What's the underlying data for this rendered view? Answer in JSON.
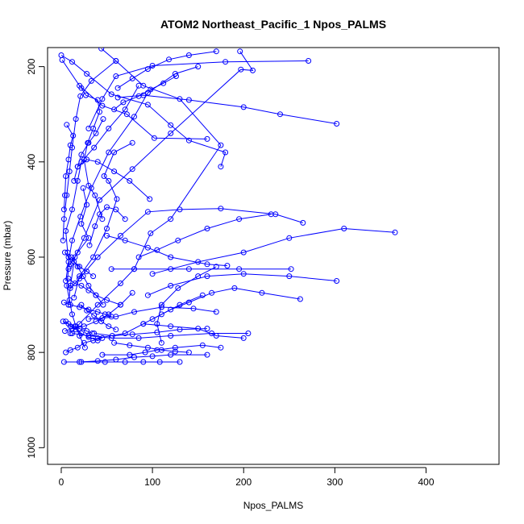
{
  "chart_data": {
    "type": "line",
    "title": "ATOM2 Northeast_Pacific_1 Npos_PALMS",
    "xlabel": "Npos_PALMS",
    "ylabel": "Pressure (mbar)",
    "xlim": [
      -15,
      480
    ],
    "ylim": [
      1035,
      160
    ],
    "x_ticks": [
      0,
      100,
      200,
      300,
      400
    ],
    "y_ticks": [
      200,
      400,
      600,
      800,
      1000
    ],
    "y_reversed": true,
    "grid": false,
    "legend": "none",
    "series_color": "#0000ff",
    "marker": "open-circle",
    "profiles": [
      [
        [
          0,
          176
        ],
        [
          12,
          190
        ],
        [
          28,
          215
        ],
        [
          55,
          258
        ],
        [
          95,
          280
        ],
        [
          120,
          323
        ],
        [
          140,
          355
        ],
        [
          180,
          380
        ],
        [
          175,
          410
        ]
      ],
      [
        [
          1,
          186
        ],
        [
          20,
          240
        ],
        [
          45,
          282
        ],
        [
          72,
          300
        ],
        [
          102,
          350
        ],
        [
          160,
          352
        ]
      ],
      [
        [
          44,
          162
        ],
        [
          60,
          188
        ],
        [
          33,
          230
        ],
        [
          21,
          262
        ],
        [
          16,
          310
        ],
        [
          12,
          370
        ],
        [
          9,
          420
        ],
        [
          6,
          470
        ],
        [
          3,
          520
        ],
        [
          2,
          565
        ]
      ],
      [
        [
          60,
          188
        ],
        [
          90,
          240
        ],
        [
          130,
          268
        ],
        [
          175,
          365
        ],
        [
          120,
          520
        ],
        [
          98,
          550
        ],
        [
          80,
          625
        ],
        [
          65,
          655
        ],
        [
          40,
          700
        ],
        [
          20,
          740
        ],
        [
          10,
          760
        ]
      ],
      [
        [
          85,
          240
        ],
        [
          70,
          290
        ],
        [
          52,
          330
        ],
        [
          36,
          370
        ],
        [
          22,
          400
        ],
        [
          18,
          440
        ],
        [
          12,
          500
        ],
        [
          5,
          545
        ],
        [
          7,
          590
        ],
        [
          9,
          620
        ]
      ],
      [
        [
          22,
          245
        ],
        [
          27,
          260
        ],
        [
          40,
          270
        ],
        [
          42,
          295
        ],
        [
          35,
          330
        ],
        [
          29,
          360
        ],
        [
          25,
          395
        ],
        [
          30,
          450
        ],
        [
          37,
          470
        ],
        [
          45,
          520
        ]
      ],
      [
        [
          196,
          168
        ],
        [
          210,
          208
        ],
        [
          197,
          206
        ],
        [
          120,
          340
        ],
        [
          78,
          415
        ],
        [
          42,
          480
        ],
        [
          25,
          560
        ],
        [
          15,
          600
        ],
        [
          10,
          660
        ],
        [
          8,
          700
        ]
      ],
      [
        [
          271,
          188
        ],
        [
          180,
          190
        ],
        [
          100,
          198
        ],
        [
          60,
          220
        ],
        [
          45,
          268
        ],
        [
          30,
          330
        ]
      ],
      [
        [
          150,
          200
        ],
        [
          125,
          215
        ],
        [
          95,
          255
        ],
        [
          80,
          305
        ],
        [
          52,
          380
        ],
        [
          33,
          455
        ],
        [
          21,
          515
        ],
        [
          12,
          565
        ],
        [
          8,
          610
        ],
        [
          5,
          650
        ]
      ],
      [
        [
          302,
          320
        ],
        [
          240,
          300
        ],
        [
          200,
          285
        ],
        [
          140,
          270
        ],
        [
          90,
          260
        ],
        [
          62,
          265
        ]
      ],
      [
        [
          265,
          528
        ],
        [
          235,
          510
        ],
        [
          175,
          498
        ],
        [
          130,
          500
        ],
        [
          95,
          505
        ],
        [
          65,
          555
        ],
        [
          40,
          600
        ],
        [
          20,
          645
        ],
        [
          10,
          665
        ]
      ],
      [
        [
          366,
          548
        ],
        [
          310,
          540
        ],
        [
          250,
          560
        ],
        [
          200,
          590
        ],
        [
          150,
          610
        ],
        [
          120,
          625
        ],
        [
          100,
          635
        ]
      ],
      [
        [
          302,
          650
        ],
        [
          250,
          640
        ],
        [
          200,
          635
        ],
        [
          160,
          640
        ],
        [
          120,
          660
        ],
        [
          95,
          680
        ]
      ],
      [
        [
          262,
          688
        ],
        [
          220,
          675
        ],
        [
          190,
          665
        ],
        [
          165,
          675
        ],
        [
          140,
          695
        ],
        [
          120,
          710
        ],
        [
          100,
          730
        ]
      ],
      [
        [
          252,
          625
        ],
        [
          195,
          625
        ],
        [
          140,
          625
        ],
        [
          80,
          625
        ],
        [
          55,
          625
        ]
      ],
      [
        [
          205,
          760
        ],
        [
          165,
          760
        ],
        [
          120,
          765
        ],
        [
          85,
          770
        ],
        [
          55,
          770
        ],
        [
          30,
          765
        ],
        [
          12,
          760
        ]
      ],
      [
        [
          200,
          770
        ],
        [
          170,
          765
        ],
        [
          150,
          750
        ],
        [
          120,
          745
        ],
        [
          90,
          740
        ]
      ],
      [
        [
          175,
          790
        ],
        [
          155,
          785
        ],
        [
          125,
          790
        ],
        [
          105,
          795
        ],
        [
          92,
          800
        ],
        [
          75,
          805
        ],
        [
          45,
          805
        ]
      ],
      [
        [
          160,
          805
        ],
        [
          120,
          805
        ],
        [
          100,
          808
        ],
        [
          80,
          810
        ],
        [
          60,
          815
        ],
        [
          40,
          818
        ],
        [
          20,
          820
        ]
      ],
      [
        [
          130,
          820
        ],
        [
          108,
          820
        ],
        [
          90,
          820
        ],
        [
          70,
          820
        ],
        [
          48,
          820
        ],
        [
          22,
          820
        ],
        [
          3,
          820
        ]
      ],
      [
        [
          170,
          715
        ],
        [
          145,
          708
        ],
        [
          110,
          705
        ],
        [
          80,
          715
        ],
        [
          60,
          725
        ],
        [
          45,
          728
        ],
        [
          30,
          730
        ]
      ],
      [
        [
          170,
          620
        ],
        [
          150,
          640
        ],
        [
          128,
          665
        ],
        [
          110,
          700
        ],
        [
          105,
          740
        ],
        [
          110,
          780
        ]
      ],
      [
        [
          182,
          618
        ],
        [
          160,
          615
        ],
        [
          120,
          600
        ],
        [
          95,
          580
        ],
        [
          70,
          565
        ],
        [
          50,
          555
        ]
      ],
      [
        [
          230,
          510
        ],
        [
          195,
          520
        ],
        [
          160,
          540
        ],
        [
          128,
          565
        ],
        [
          105,
          585
        ],
        [
          85,
          600
        ]
      ],
      [
        [
          155,
          680
        ],
        [
          130,
          700
        ],
        [
          110,
          720
        ],
        [
          90,
          740
        ],
        [
          70,
          760
        ],
        [
          40,
          770
        ]
      ],
      [
        [
          78,
          360
        ],
        [
          58,
          380
        ],
        [
          47,
          430
        ],
        [
          52,
          440
        ],
        [
          61,
          478
        ],
        [
          50,
          540
        ],
        [
          35,
          600
        ],
        [
          20,
          640
        ],
        [
          14,
          685
        ]
      ],
      [
        [
          97,
          478
        ],
        [
          75,
          440
        ],
        [
          58,
          420
        ],
        [
          40,
          400
        ],
        [
          28,
          395
        ],
        [
          18,
          410
        ]
      ],
      [
        [
          78,
          675
        ],
        [
          65,
          700
        ],
        [
          52,
          720
        ],
        [
          38,
          735
        ],
        [
          25,
          745
        ],
        [
          12,
          750
        ],
        [
          4,
          755
        ]
      ],
      [
        [
          55,
          725
        ],
        [
          48,
          720
        ],
        [
          40,
          715
        ],
        [
          30,
          710
        ],
        [
          20,
          705
        ],
        [
          10,
          700
        ],
        [
          3,
          695
        ]
      ],
      [
        [
          34,
          760
        ],
        [
          28,
          755
        ],
        [
          20,
          750
        ],
        [
          15,
          745
        ],
        [
          8,
          740
        ],
        [
          2,
          735
        ]
      ],
      [
        [
          45,
          770
        ],
        [
          35,
          775
        ],
        [
          25,
          780
        ],
        [
          18,
          790
        ],
        [
          10,
          795
        ],
        [
          5,
          800
        ]
      ],
      [
        [
          65,
          700
        ],
        [
          50,
          690
        ],
        [
          38,
          680
        ],
        [
          30,
          670
        ],
        [
          22,
          660
        ],
        [
          15,
          655
        ],
        [
          8,
          645
        ]
      ],
      [
        [
          35,
          640
        ],
        [
          28,
          630
        ],
        [
          20,
          620
        ],
        [
          14,
          610
        ],
        [
          8,
          600
        ],
        [
          4,
          590
        ]
      ],
      [
        [
          24,
          455
        ],
        [
          28,
          490
        ],
        [
          22,
          530
        ],
        [
          30,
          560
        ],
        [
          18,
          590
        ],
        [
          10,
          615
        ]
      ],
      [
        [
          46,
          310
        ],
        [
          38,
          340
        ],
        [
          30,
          360
        ],
        [
          22,
          385
        ],
        [
          18,
          410
        ],
        [
          14,
          440
        ]
      ],
      [
        [
          6,
          322
        ],
        [
          13,
          345
        ],
        [
          10,
          365
        ],
        [
          8,
          395
        ],
        [
          5,
          430
        ],
        [
          4,
          470
        ],
        [
          3,
          500
        ]
      ],
      [
        [
          11,
          600
        ],
        [
          18,
          620
        ],
        [
          24,
          640
        ],
        [
          30,
          660
        ],
        [
          38,
          680
        ],
        [
          46,
          700
        ]
      ],
      [
        [
          22,
          700
        ],
        [
          28,
          712
        ],
        [
          36,
          722
        ],
        [
          44,
          735
        ],
        [
          52,
          745
        ],
        [
          60,
          752
        ]
      ],
      [
        [
          5,
          735
        ],
        [
          10,
          745
        ],
        [
          16,
          752
        ],
        [
          22,
          760
        ],
        [
          30,
          768
        ],
        [
          40,
          775
        ]
      ],
      [
        [
          8,
          625
        ],
        [
          6,
          660
        ],
        [
          9,
          690
        ],
        [
          12,
          720
        ],
        [
          16,
          745
        ],
        [
          20,
          765
        ],
        [
          26,
          790
        ]
      ],
      [
        [
          31,
          575
        ],
        [
          37,
          535
        ],
        [
          42,
          510
        ],
        [
          50,
          495
        ],
        [
          60,
          500
        ],
        [
          70,
          520
        ]
      ],
      [
        [
          126,
          220
        ],
        [
          112,
          235
        ],
        [
          98,
          248
        ],
        [
          85,
          262
        ],
        [
          68,
          275
        ],
        [
          58,
          290
        ]
      ],
      [
        [
          170,
          168
        ],
        [
          140,
          176
        ],
        [
          118,
          185
        ],
        [
          95,
          205
        ],
        [
          78,
          225
        ],
        [
          62,
          245
        ]
      ],
      [
        [
          160,
          750
        ],
        [
          130,
          752
        ],
        [
          105,
          758
        ],
        [
          78,
          762
        ],
        [
          56,
          765
        ],
        [
          36,
          760
        ]
      ],
      [
        [
          140,
          800
        ],
        [
          125,
          798
        ],
        [
          110,
          795
        ],
        [
          95,
          790
        ],
        [
          75,
          785
        ],
        [
          58,
          780
        ]
      ]
    ]
  }
}
